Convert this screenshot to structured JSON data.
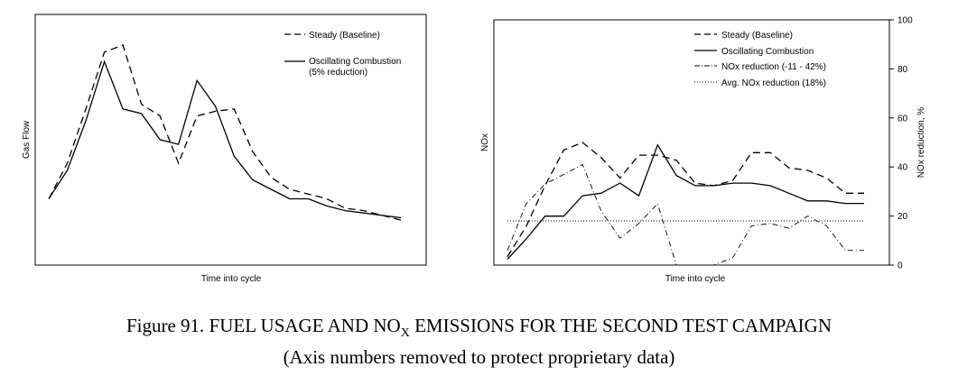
{
  "chart_data": [
    {
      "type": "line",
      "xlabel": "Time into cycle",
      "ylabel": "Gas Flow",
      "x": [
        0,
        1,
        2,
        3,
        4,
        5,
        6,
        7,
        8,
        9,
        10,
        11,
        12,
        13,
        14,
        15,
        16,
        17,
        18,
        19
      ],
      "series": [
        {
          "name": "Steady (Baseline)",
          "style": "dashed",
          "values": [
            30,
            45,
            68,
            92,
            95,
            70,
            65,
            45,
            65,
            67,
            68,
            50,
            39,
            34,
            32,
            30,
            26,
            25,
            23,
            21
          ]
        },
        {
          "name": "Oscillating Combustion",
          "style": "solid",
          "note": "(5% reduction)",
          "values": [
            30,
            42,
            63,
            88,
            68,
            66,
            55,
            53,
            80,
            69,
            48,
            38,
            34,
            30,
            30,
            27,
            25,
            24,
            23,
            22
          ]
        }
      ],
      "legend": "top-right"
    },
    {
      "type": "line",
      "xlabel": "Time into cycle",
      "ylabel": "NOx",
      "y2label": "NOx reduction, %",
      "y2lim": [
        0,
        100
      ],
      "y2ticks": [
        "0",
        "20",
        "40",
        "60",
        "80",
        "100"
      ],
      "x": [
        0,
        1,
        2,
        3,
        4,
        5,
        6,
        7,
        8,
        9,
        10,
        11,
        12,
        13,
        14,
        15,
        16,
        17,
        18,
        19
      ],
      "series": [
        {
          "name": "Steady (Baseline)",
          "style": "dashed",
          "axis": "left",
          "values": [
            24,
            36,
            52,
            66,
            69,
            63,
            55,
            64,
            64,
            62,
            53,
            52,
            54,
            65,
            65,
            59,
            58,
            55,
            49,
            49
          ]
        },
        {
          "name": "Oscillating Combustion",
          "style": "solid",
          "axis": "left",
          "values": [
            23,
            31,
            40,
            40,
            48,
            49,
            53,
            48,
            68,
            56,
            52,
            52,
            53,
            53,
            52,
            49,
            46,
            46,
            45,
            45
          ]
        },
        {
          "name": "NOx reduction (-11 - 42%)",
          "style": "dash-dot",
          "axis": "right",
          "values": [
            6,
            25,
            33,
            37,
            41,
            22,
            11,
            17,
            25,
            0,
            0,
            0,
            3,
            16,
            17,
            15,
            20,
            16,
            6,
            6
          ]
        },
        {
          "name": "Avg. NOx reduction (18%)",
          "style": "dotted",
          "axis": "right",
          "values": [
            18,
            18,
            18,
            18,
            18,
            18,
            18,
            18,
            18,
            18,
            18,
            18,
            18,
            18,
            18,
            18,
            18,
            18,
            18,
            18
          ]
        }
      ],
      "legend": "top-right"
    }
  ],
  "caption": {
    "line1_before_sub": "Figure 91.  FUEL USAGE AND NO",
    "line1_sub": "X",
    "line1_after_sub": " EMISSIONS FOR THE SECOND TEST CAMPAIGN",
    "line2": "(Axis numbers removed to protect proprietary data)"
  }
}
